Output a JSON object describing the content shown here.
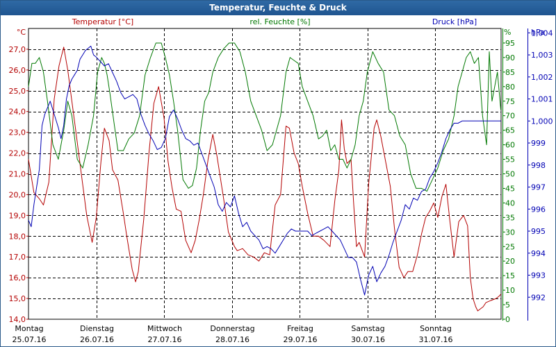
{
  "window": {
    "title": "Temperatur, Feuchte & Druck"
  },
  "chart_data": {
    "type": "line",
    "title": "Temperatur, Feuchte & Druck",
    "colors": {
      "temperature": "#b40000",
      "humidity": "#007800",
      "pressure": "#0000b4",
      "grid": "#000000",
      "frame": "#2a5a8a"
    },
    "axes": {
      "temperature": {
        "label": "Temperatur [°C]",
        "unit": "°C",
        "range": [
          14.0,
          28.0
        ],
        "ticks": [
          "14,0",
          "15,0",
          "16,0",
          "17,0",
          "18,0",
          "19,0",
          "20,0",
          "21,0",
          "22,0",
          "23,0",
          "24,0",
          "25,0",
          "26,0",
          "27,0"
        ],
        "tick_values": [
          14,
          15,
          16,
          17,
          18,
          19,
          20,
          21,
          22,
          23,
          24,
          25,
          26,
          27
        ]
      },
      "humidity": {
        "label": "rel. Feuchte [%]",
        "unit": "%",
        "range": [
          0,
          100
        ],
        "ticks": [
          "0",
          "5",
          "10",
          "15",
          "20",
          "25",
          "30",
          "35",
          "40",
          "45",
          "50",
          "55",
          "60",
          "65",
          "70",
          "75",
          "80",
          "85",
          "90",
          "95"
        ],
        "tick_values": [
          0,
          5,
          10,
          15,
          20,
          25,
          30,
          35,
          40,
          45,
          50,
          55,
          60,
          65,
          70,
          75,
          80,
          85,
          90,
          95
        ]
      },
      "pressure": {
        "label": "Druck [hPa]",
        "unit": "hPa",
        "range": [
          991.0,
          1004.2
        ],
        "ticks": [
          "992",
          "993",
          "994",
          "995",
          "996",
          "997",
          "998",
          "999",
          "1,000",
          "1,001",
          "1,002",
          "1,003",
          "1,004"
        ],
        "tick_values": [
          992,
          993,
          994,
          995,
          996,
          997,
          998,
          999,
          1000,
          1001,
          1002,
          1003,
          1004
        ]
      }
    },
    "x": {
      "range_days": [
        0,
        7
      ],
      "labels": [
        {
          "day": "Montag",
          "date": "25.07.16"
        },
        {
          "day": "Dienstag",
          "date": "26.07.16"
        },
        {
          "day": "Mittwoch",
          "date": "27.07.16"
        },
        {
          "day": "Donnerstag",
          "date": "28.07.16"
        },
        {
          "day": "Freitag",
          "date": "29.07.16"
        },
        {
          "day": "Samstag",
          "date": "30.07.16"
        },
        {
          "day": "Sonntag",
          "date": "31.07.16"
        }
      ]
    },
    "grid": true,
    "series": [
      {
        "name": "Temperatur",
        "axis": "temperature",
        "color": "#b40000",
        "x": [
          0,
          0.08,
          0.16,
          0.22,
          0.3,
          0.38,
          0.45,
          0.52,
          0.58,
          0.64,
          0.7,
          0.78,
          0.86,
          0.94,
          1.0,
          1.07,
          1.12,
          1.19,
          1.24,
          1.32,
          1.4,
          1.45,
          1.53,
          1.58,
          1.62,
          1.7,
          1.78,
          1.85,
          1.92,
          2.0,
          2.06,
          2.12,
          2.18,
          2.25,
          2.32,
          2.4,
          2.46,
          2.52,
          2.58,
          2.65,
          2.72,
          2.78,
          2.88,
          2.95,
          3.04,
          3.08,
          3.16,
          3.24,
          3.32,
          3.4,
          3.48,
          3.56,
          3.64,
          3.72,
          3.8,
          3.85,
          3.92,
          3.98,
          4.04,
          4.12,
          4.2,
          4.28,
          4.36,
          4.45,
          4.52,
          4.58,
          4.62,
          4.66,
          4.7,
          4.76,
          4.8,
          4.84,
          4.88,
          4.96,
          5.02,
          5.1,
          5.14,
          5.2,
          5.27,
          5.34,
          5.4,
          5.47,
          5.54,
          5.6,
          5.67,
          5.74,
          5.8,
          5.86,
          5.92,
          5.98,
          6.04,
          6.1,
          6.16,
          6.22,
          6.28,
          6.35,
          6.42,
          6.48,
          6.52,
          6.56,
          6.6,
          6.63,
          6.67,
          6.71,
          6.75,
          6.82,
          6.9,
          6.94,
          6.97
        ],
        "values": [
          21.7,
          20.1,
          19.8,
          19.5,
          20.6,
          24.6,
          26.2,
          27.1,
          26.0,
          24.5,
          23.0,
          21.0,
          19.0,
          17.7,
          18.9,
          21.6,
          23.2,
          22.6,
          21.2,
          20.7,
          19.1,
          18.0,
          16.4,
          15.8,
          16.3,
          18.8,
          22.1,
          24.4,
          25.2,
          23.7,
          21.6,
          20.3,
          19.3,
          19.2,
          17.8,
          17.2,
          17.8,
          18.8,
          20.0,
          21.7,
          22.9,
          21.9,
          19.8,
          18.2,
          17.5,
          17.3,
          17.4,
          17.1,
          17.0,
          16.8,
          17.2,
          17.1,
          19.5,
          20.0,
          23.3,
          23.2,
          22.0,
          21.5,
          20.4,
          19.1,
          18.0,
          18.0,
          17.8,
          17.5,
          19.7,
          21.2,
          23.6,
          22.2,
          21.5,
          21.7,
          19.5,
          17.5,
          17.7,
          17.0,
          20.5,
          23.2,
          23.6,
          22.8,
          21.6,
          20.4,
          18.4,
          16.5,
          16.0,
          16.3,
          16.3,
          17.1,
          18.1,
          18.9,
          19.2,
          19.6,
          18.9,
          19.9,
          20.5,
          18.7,
          17.0,
          18.7,
          19.0,
          18.5,
          16.0,
          15.0,
          14.6,
          14.4,
          14.5,
          14.6,
          14.8,
          14.9,
          15.0,
          15.1,
          15.2
        ]
      },
      {
        "name": "rel. Feuchte",
        "axis": "humidity",
        "color": "#007800",
        "x": [
          0,
          0.05,
          0.1,
          0.16,
          0.22,
          0.28,
          0.36,
          0.44,
          0.52,
          0.58,
          0.64,
          0.72,
          0.8,
          0.88,
          0.96,
          1.02,
          1.08,
          1.12,
          1.16,
          1.2,
          1.26,
          1.32,
          1.4,
          1.48,
          1.56,
          1.64,
          1.72,
          1.8,
          1.88,
          1.96,
          2.02,
          2.08,
          2.14,
          2.2,
          2.28,
          2.36,
          2.42,
          2.48,
          2.54,
          2.6,
          2.66,
          2.72,
          2.8,
          2.88,
          2.96,
          3.04,
          3.12,
          3.2,
          3.28,
          3.36,
          3.44,
          3.52,
          3.6,
          3.66,
          3.72,
          3.8,
          3.86,
          3.92,
          3.98,
          4.04,
          4.12,
          4.2,
          4.28,
          4.34,
          4.4,
          4.46,
          4.52,
          4.58,
          4.64,
          4.7,
          4.76,
          4.82,
          4.88,
          4.94,
          5.0,
          5.08,
          5.16,
          5.24,
          5.32,
          5.4,
          5.48,
          5.56,
          5.64,
          5.72,
          5.8,
          5.88,
          5.96,
          6.04,
          6.12,
          6.2,
          6.28,
          6.34,
          6.4,
          6.46,
          6.52,
          6.58,
          6.64,
          6.7,
          6.76,
          6.8,
          6.84,
          6.88,
          6.92,
          6.97
        ],
        "values": [
          80,
          88,
          88,
          90,
          85,
          75,
          60,
          55,
          65,
          75,
          70,
          55,
          52,
          60,
          70,
          85,
          90,
          88,
          84,
          78,
          68,
          58,
          58,
          62,
          64,
          70,
          84,
          90,
          95,
          95,
          90,
          84,
          75,
          65,
          48,
          45,
          46,
          52,
          65,
          75,
          78,
          85,
          90,
          93,
          95,
          95,
          92,
          85,
          75,
          70,
          65,
          58,
          60,
          65,
          70,
          85,
          90,
          89,
          88,
          80,
          75,
          70,
          62,
          63,
          65,
          58,
          60,
          55,
          55,
          52,
          55,
          60,
          70,
          75,
          85,
          92,
          88,
          85,
          72,
          70,
          63,
          60,
          50,
          45,
          45,
          44,
          48,
          52,
          58,
          62,
          70,
          80,
          85,
          90,
          92,
          88,
          90,
          70,
          60,
          92,
          75,
          80,
          85,
          72
        ]
      },
      {
        "name": "Druck",
        "axis": "pressure",
        "color": "#0000b4",
        "x": [
          0,
          0.04,
          0.08,
          0.12,
          0.16,
          0.2,
          0.24,
          0.28,
          0.32,
          0.36,
          0.4,
          0.44,
          0.48,
          0.52,
          0.56,
          0.6,
          0.64,
          0.68,
          0.72,
          0.76,
          0.8,
          0.84,
          0.88,
          0.92,
          0.96,
          1.0,
          1.06,
          1.12,
          1.18,
          1.24,
          1.3,
          1.36,
          1.42,
          1.48,
          1.54,
          1.6,
          1.66,
          1.72,
          1.78,
          1.84,
          1.9,
          1.96,
          2.02,
          2.08,
          2.14,
          2.2,
          2.26,
          2.32,
          2.38,
          2.44,
          2.5,
          2.56,
          2.62,
          2.68,
          2.74,
          2.8,
          2.86,
          2.92,
          2.98,
          3.04,
          3.1,
          3.16,
          3.22,
          3.28,
          3.34,
          3.4,
          3.46,
          3.52,
          3.58,
          3.64,
          3.7,
          3.76,
          3.82,
          3.88,
          3.94,
          4.0,
          4.06,
          4.12,
          4.18,
          4.24,
          4.3,
          4.36,
          4.42,
          4.48,
          4.54,
          4.6,
          4.66,
          4.72,
          4.78,
          4.84,
          4.9,
          4.96,
          5.02,
          5.08,
          5.14,
          5.2,
          5.26,
          5.32,
          5.38,
          5.44,
          5.5,
          5.56,
          5.62,
          5.68,
          5.74,
          5.8,
          5.86,
          5.92,
          5.98,
          6.04,
          6.1,
          6.16,
          6.22,
          6.28,
          6.34,
          6.4,
          6.46,
          6.52,
          6.58,
          6.64,
          6.7,
          6.76,
          6.82,
          6.88,
          6.94,
          6.97
        ],
        "values": [
          995.5,
          995.2,
          996.2,
          997.0,
          997.8,
          999.8,
          1000.3,
          1000.6,
          1000.9,
          1000.5,
          1000.1,
          999.7,
          999.2,
          999.8,
          1001.0,
          1001.6,
          1001.9,
          1002.1,
          1002.3,
          1002.8,
          1003.0,
          1003.2,
          1003.3,
          1003.4,
          1003.0,
          1002.9,
          1002.7,
          1002.5,
          1002.6,
          1002.2,
          1001.8,
          1001.3,
          1001.0,
          1001.1,
          1001.2,
          1001.0,
          1000.3,
          999.8,
          999.4,
          999.1,
          998.7,
          998.8,
          999.2,
          1000.2,
          1000.5,
          1000.1,
          999.6,
          999.2,
          999.1,
          998.9,
          999.0,
          998.5,
          998.0,
          997.5,
          997.0,
          996.2,
          995.9,
          996.3,
          996.1,
          996.6,
          995.8,
          995.2,
          995.4,
          995.0,
          994.8,
          994.6,
          994.2,
          994.3,
          994.2,
          994.0,
          994.3,
          994.6,
          994.9,
          995.1,
          995.0,
          995.0,
          995.0,
          995.0,
          994.8,
          994.9,
          995.0,
          995.1,
          995.2,
          995.0,
          994.8,
          994.6,
          994.2,
          993.8,
          993.8,
          993.6,
          992.8,
          992.1,
          993.0,
          993.4,
          992.7,
          993.1,
          993.4,
          993.9,
          994.5,
          995.0,
          995.5,
          996.2,
          996.0,
          996.5,
          996.4,
          996.8,
          996.9,
          997.4,
          997.7,
          998.1,
          998.6,
          999.2,
          999.6,
          999.9,
          999.9,
          1000.0,
          1000.0,
          1000.0,
          1000.0,
          1000.0,
          1000.0,
          1000.0,
          1000.0,
          1000.0,
          1000.0,
          1000.0
        ]
      }
    ]
  }
}
